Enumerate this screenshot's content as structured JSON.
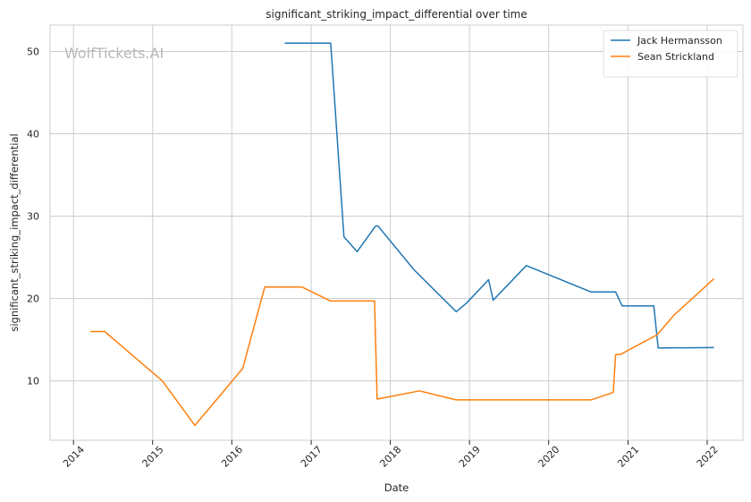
{
  "chart_data": {
    "type": "line",
    "title": "significant_striking_impact_differential over time",
    "xlabel": "Date",
    "ylabel": "significant_striking_impact_differential",
    "watermark": "WolfTickets.AI",
    "x_ticks": [
      "2014",
      "2015",
      "2016",
      "2017",
      "2018",
      "2019",
      "2020",
      "2021",
      "2022"
    ],
    "y_ticks": [
      10,
      20,
      30,
      40,
      50
    ],
    "xlim": [
      "2013-09-15",
      "2022-06-15"
    ],
    "ylim": [
      2.8,
      53.2
    ],
    "grid": true,
    "legend_position": "top-right",
    "series": [
      {
        "name": "Jack Hermansson",
        "color": "#1f77b4",
        "points": [
          [
            "2016-09-01",
            51.0
          ],
          [
            "2017-04-01",
            51.0
          ],
          [
            "2017-06-01",
            27.5
          ],
          [
            "2017-08-01",
            25.7
          ],
          [
            "2017-10-25",
            28.8
          ],
          [
            "2017-11-05",
            28.8
          ],
          [
            "2018-04-20",
            23.5
          ],
          [
            "2018-11-01",
            18.4
          ],
          [
            "2018-12-20",
            19.5
          ],
          [
            "2019-03-30",
            22.3
          ],
          [
            "2019-04-20",
            19.8
          ],
          [
            "2019-09-20",
            24.0
          ],
          [
            "2020-07-15",
            20.8
          ],
          [
            "2020-11-05",
            20.8
          ],
          [
            "2020-12-05",
            19.1
          ],
          [
            "2021-04-30",
            19.1
          ],
          [
            "2021-05-20",
            14.0
          ],
          [
            "2022-02-01",
            14.05
          ]
        ]
      },
      {
        "name": "Sean Strickland",
        "color": "#ff7f0e",
        "points": [
          [
            "2014-03-20",
            16.0
          ],
          [
            "2014-05-25",
            16.0
          ],
          [
            "2015-02-15",
            10.0
          ],
          [
            "2015-07-15",
            4.6
          ],
          [
            "2016-02-20",
            11.5
          ],
          [
            "2016-06-01",
            21.4
          ],
          [
            "2016-11-20",
            21.4
          ],
          [
            "2017-04-01",
            19.7
          ],
          [
            "2017-10-20",
            19.7
          ],
          [
            "2017-11-01",
            7.8
          ],
          [
            "2018-05-15",
            8.8
          ],
          [
            "2018-11-01",
            7.7
          ],
          [
            "2020-07-15",
            7.7
          ],
          [
            "2020-10-25",
            8.6
          ],
          [
            "2020-11-05",
            13.2
          ],
          [
            "2020-11-25",
            13.2
          ],
          [
            "2021-05-15",
            15.6
          ],
          [
            "2021-08-01",
            18.0
          ],
          [
            "2022-02-01",
            22.4
          ]
        ]
      }
    ]
  }
}
